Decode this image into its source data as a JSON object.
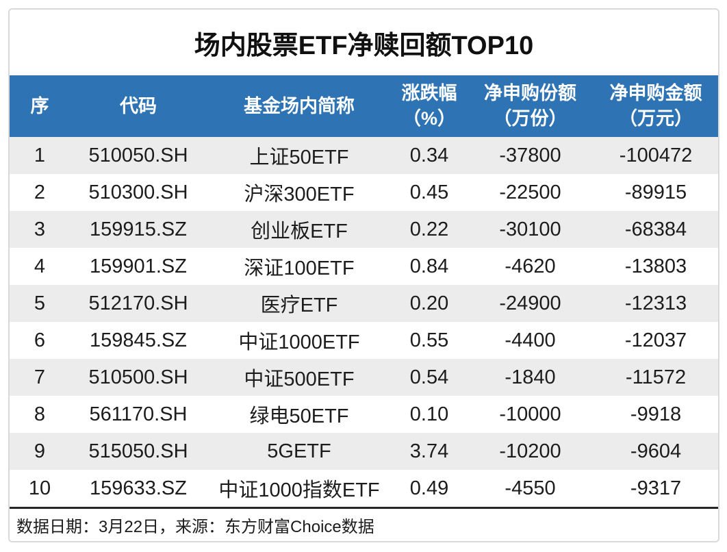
{
  "chart_data": {
    "type": "table",
    "title": "场内股票ETF净赎回额TOP10",
    "columns": [
      {
        "label": "序",
        "sub": ""
      },
      {
        "label": "代码",
        "sub": ""
      },
      {
        "label": "基金场内简称",
        "sub": ""
      },
      {
        "label": "涨跌幅",
        "sub": "（%）"
      },
      {
        "label": "净申购份额",
        "sub": "（万份）"
      },
      {
        "label": "净申购金额",
        "sub": "（万元）"
      }
    ],
    "rows": [
      [
        "1",
        "510050.SH",
        "上证50ETF",
        "0.34",
        "-37800",
        "-100472"
      ],
      [
        "2",
        "510300.SH",
        "沪深300ETF",
        "0.45",
        "-22500",
        "-89915"
      ],
      [
        "3",
        "159915.SZ",
        "创业板ETF",
        "0.22",
        "-30100",
        "-68384"
      ],
      [
        "4",
        "159901.SZ",
        "深证100ETF",
        "0.84",
        "-4620",
        "-13803"
      ],
      [
        "5",
        "512170.SH",
        "医疗ETF",
        "0.20",
        "-24900",
        "-12313"
      ],
      [
        "6",
        "159845.SZ",
        "中证1000ETF",
        "0.55",
        "-4400",
        "-12037"
      ],
      [
        "7",
        "510500.SH",
        "中证500ETF",
        "0.54",
        "-1840",
        "-11572"
      ],
      [
        "8",
        "561170.SH",
        "绿电50ETF",
        "0.10",
        "-10000",
        "-9918"
      ],
      [
        "9",
        "515050.SH",
        "5GETF",
        "3.74",
        "-10200",
        "-9604"
      ],
      [
        "10",
        "159633.SZ",
        "中证1000指数ETF",
        "0.49",
        "-4550",
        "-9317"
      ]
    ],
    "source_note": "数据日期：3月22日，来源：东方财富Choice数据",
    "legend": "none",
    "grid": "row-stripes"
  },
  "colors": {
    "header_bg": "#2e74b5",
    "stripe_bg": "#ececec",
    "card_border": "#d9d9d9",
    "footer_border": "#262626",
    "text": "#1c1c1c",
    "header_text": "#ffffff"
  }
}
